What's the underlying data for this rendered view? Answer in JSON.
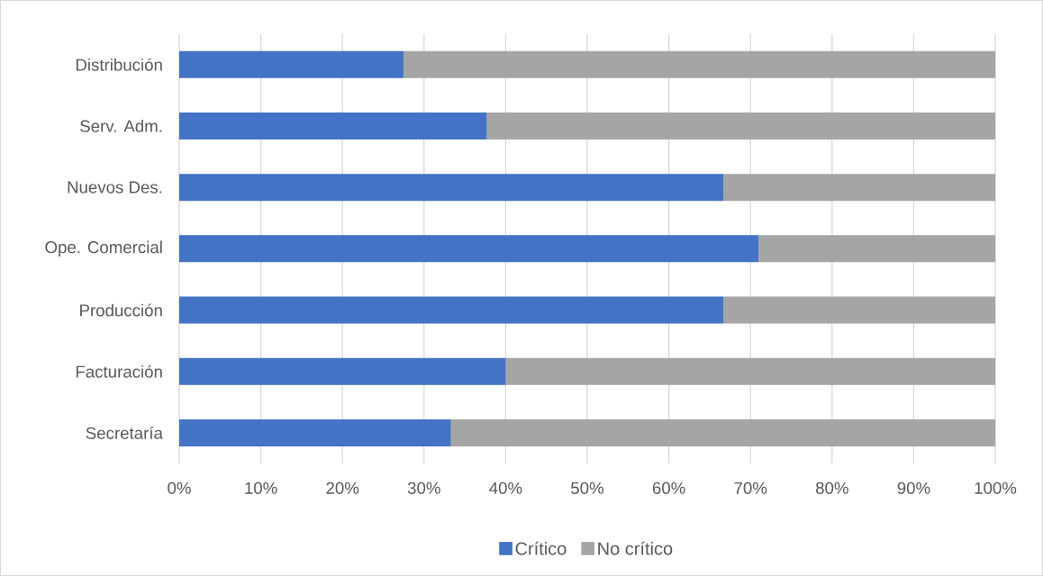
{
  "chart_data": {
    "type": "bar",
    "orientation": "horizontal",
    "stacked": true,
    "categories": [
      "Distribución",
      "Serv. Adm.",
      "Nuevos Des.",
      "Ope. Comercial",
      "Producción",
      "Facturación",
      "Secretaría"
    ],
    "series": [
      {
        "name": "Crítico",
        "color": "#4472c4",
        "values": [
          27.5,
          37.7,
          66.7,
          71.0,
          66.7,
          40.0,
          33.3
        ]
      },
      {
        "name": "No crítico",
        "color": "#a5a5a5",
        "values": [
          72.5,
          62.3,
          33.3,
          29.0,
          33.3,
          60.0,
          66.7
        ]
      }
    ],
    "xlim": [
      0,
      100
    ],
    "xticks": [
      {
        "value": 0,
        "label": "0%"
      },
      {
        "value": 10,
        "label": "10%"
      },
      {
        "value": 20,
        "label": "20%"
      },
      {
        "value": 30,
        "label": "30%"
      },
      {
        "value": 40,
        "label": "40%"
      },
      {
        "value": 50,
        "label": "50%"
      },
      {
        "value": 60,
        "label": "60%"
      },
      {
        "value": 70,
        "label": "70%"
      },
      {
        "value": 80,
        "label": "80%"
      },
      {
        "value": 90,
        "label": "90%"
      },
      {
        "value": 100,
        "label": "100%"
      }
    ],
    "grid": "x",
    "legend": "bottom"
  }
}
